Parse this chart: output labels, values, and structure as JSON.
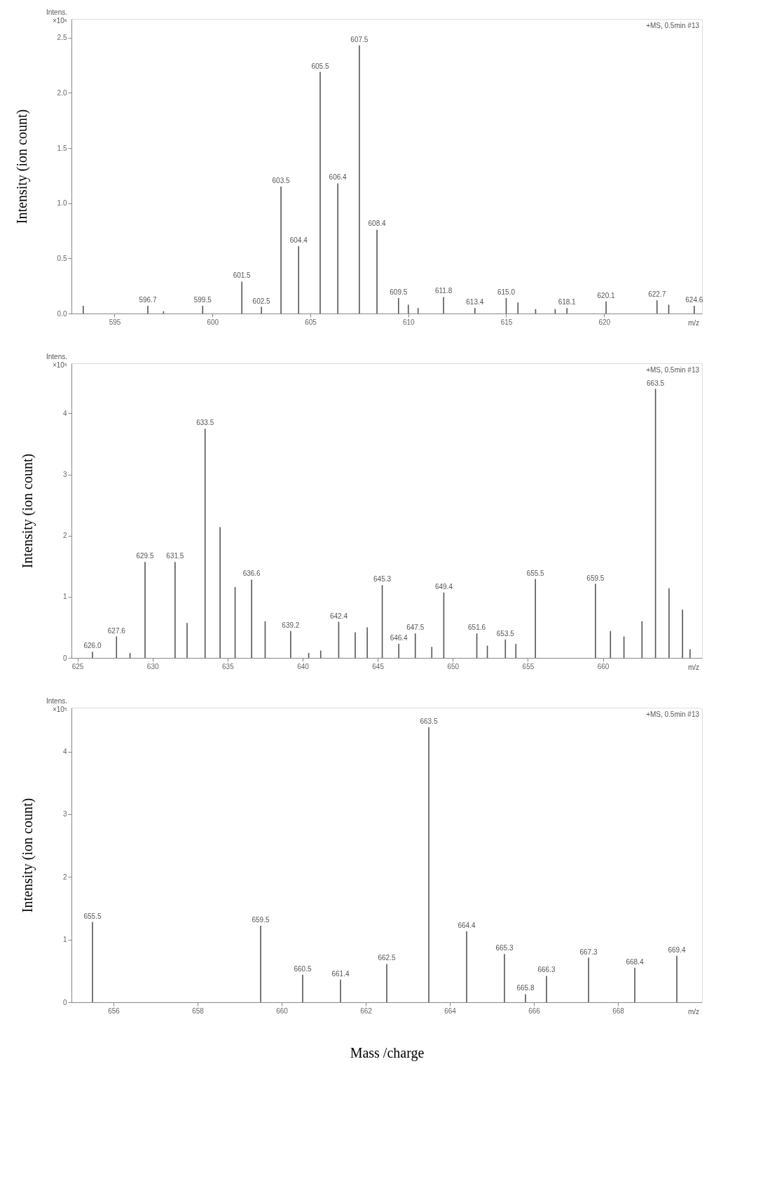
{
  "chart_data": [
    {
      "type": "bar",
      "ylabel": "Intensity (ion count)",
      "color": "#555555",
      "annotations": [
        "Intens.\n×10⁶",
        "+MS, 0.5min #13",
        "m/z",
        {
          "text": "596.7",
          "x": 596.7,
          "y": 0.07
        },
        {
          "text": "599.5",
          "x": 599.5,
          "y": 0.07
        },
        {
          "text": "601.5",
          "x": 601.5,
          "y": 0.29
        },
        {
          "text": "602.5",
          "x": 602.5,
          "y": 0.06
        },
        {
          "text": "603.5",
          "x": 603.5,
          "y": 1.15
        },
        {
          "text": "604.4",
          "x": 604.4,
          "y": 0.61
        },
        {
          "text": "605.5",
          "x": 605.5,
          "y": 2.19
        },
        {
          "text": "606.4",
          "x": 606.4,
          "y": 1.18
        },
        {
          "text": "607.5",
          "x": 607.5,
          "y": 2.43
        },
        {
          "text": "608.4",
          "x": 608.4,
          "y": 0.76
        },
        {
          "text": "609.5",
          "x": 609.5,
          "y": 0.14
        },
        {
          "text": "611.8",
          "x": 611.8,
          "y": 0.15
        },
        {
          "text": "613.4",
          "x": 613.4,
          "y": 0.05
        },
        {
          "text": "615.0",
          "x": 615.0,
          "y": 0.14
        },
        {
          "text": "618.1",
          "x": 618.1,
          "y": 0.05
        },
        {
          "text": "620.1",
          "x": 620.1,
          "y": 0.11
        },
        {
          "text": "622.7",
          "x": 622.7,
          "y": 0.12
        },
        {
          "text": "624.6",
          "x": 624.6,
          "y": 0.07
        }
      ],
      "x": [
        593.4,
        596.7,
        597.5,
        599.5,
        601.5,
        602.5,
        603.5,
        604.4,
        605.5,
        606.4,
        607.5,
        608.4,
        609.5,
        610.0,
        610.5,
        611.8,
        613.4,
        615.0,
        615.6,
        616.5,
        617.5,
        618.1,
        620.1,
        622.7,
        623.3,
        624.6
      ],
      "values": [
        0.07,
        0.07,
        0.02,
        0.07,
        0.29,
        0.06,
        1.15,
        0.61,
        2.19,
        1.18,
        2.43,
        0.76,
        0.14,
        0.08,
        0.05,
        0.15,
        0.05,
        0.14,
        0.1,
        0.04,
        0.04,
        0.05,
        0.11,
        0.12,
        0.08,
        0.07
      ],
      "xlim": [
        592.8,
        625.0
      ],
      "xticks": [
        595,
        600,
        605,
        610,
        615,
        620
      ],
      "ylim": [
        0,
        2.67
      ],
      "yticks": [
        {
          "value": 0,
          "label": "0.0"
        },
        0.5,
        {
          "value": 1,
          "label": "1.0"
        },
        1.5,
        {
          "value": 2,
          "label": "2.0"
        },
        2.5
      ]
    },
    {
      "type": "bar",
      "ylabel": "Intensity (ion count)",
      "color": "#555555",
      "annotations": [
        "Intens.\n×10⁵",
        "+MS, 0.5min #13",
        "m/z",
        {
          "text": "626.0",
          "x": 626.0,
          "y": 0.1
        },
        {
          "text": "627.6",
          "x": 627.6,
          "y": 0.35
        },
        {
          "text": "629.5",
          "x": 629.5,
          "y": 1.57
        },
        {
          "text": "631.5",
          "x": 631.5,
          "y": 1.57
        },
        {
          "text": "633.5",
          "x": 633.5,
          "y": 3.75
        },
        {
          "text": "636.6",
          "x": 636.6,
          "y": 1.28
        },
        {
          "text": "639.2",
          "x": 639.2,
          "y": 0.44
        },
        {
          "text": "642.4",
          "x": 642.4,
          "y": 0.59
        },
        {
          "text": "645.3",
          "x": 645.3,
          "y": 1.19
        },
        {
          "text": "646.4",
          "x": 646.4,
          "y": 0.23
        },
        {
          "text": "647.5",
          "x": 647.5,
          "y": 0.4
        },
        {
          "text": "649.4",
          "x": 649.4,
          "y": 1.07
        },
        {
          "text": "651.6",
          "x": 651.6,
          "y": 0.4
        },
        {
          "text": "653.5",
          "x": 653.5,
          "y": 0.3
        },
        {
          "text": "655.5",
          "x": 655.5,
          "y": 1.29
        },
        {
          "text": "659.5",
          "x": 659.5,
          "y": 1.21
        },
        {
          "text": "663.5",
          "x": 663.5,
          "y": 4.4
        }
      ],
      "x": [
        626.0,
        627.6,
        628.5,
        629.5,
        631.5,
        632.3,
        633.5,
        634.5,
        635.5,
        636.6,
        637.5,
        639.2,
        640.4,
        641.2,
        642.4,
        643.5,
        644.3,
        645.3,
        646.4,
        647.5,
        648.6,
        649.4,
        651.6,
        652.3,
        653.5,
        654.2,
        655.5,
        659.5,
        660.5,
        661.4,
        662.6,
        663.5,
        664.4,
        665.3,
        665.8
      ],
      "values": [
        0.1,
        0.35,
        0.08,
        1.57,
        1.57,
        0.57,
        3.75,
        2.14,
        1.16,
        1.28,
        0.6,
        0.44,
        0.08,
        0.12,
        0.59,
        0.42,
        0.5,
        1.19,
        0.23,
        0.4,
        0.18,
        1.07,
        0.4,
        0.2,
        0.3,
        0.23,
        1.29,
        1.21,
        0.44,
        0.35,
        0.6,
        4.4,
        1.14,
        0.79,
        0.14
      ],
      "xlim": [
        624.6,
        666.6
      ],
      "xticks": [
        625,
        630,
        635,
        640,
        645,
        650,
        655,
        660
      ],
      "ylim": [
        0,
        4.82
      ],
      "yticks": [
        0,
        1,
        2,
        3,
        4
      ]
    },
    {
      "type": "bar",
      "ylabel": "Intensity (ion count)",
      "xlabel": "Mass /charge",
      "color": "#555555",
      "annotations": [
        "Intens.\n×10⁵",
        "+MS, 0.5min #13",
        "m/z",
        {
          "text": "655.5",
          "x": 655.5,
          "y": 1.28
        },
        {
          "text": "659.5",
          "x": 659.5,
          "y": 1.22
        },
        {
          "text": "660.5",
          "x": 660.5,
          "y": 0.44
        },
        {
          "text": "661.4",
          "x": 661.4,
          "y": 0.36
        },
        {
          "text": "662.5",
          "x": 662.5,
          "y": 0.61
        },
        {
          "text": "663.5",
          "x": 663.5,
          "y": 4.39
        },
        {
          "text": "664.4",
          "x": 664.4,
          "y": 1.13
        },
        {
          "text": "665.3",
          "x": 665.3,
          "y": 0.77
        },
        {
          "text": "665.8",
          "x": 665.8,
          "y": 0.13
        },
        {
          "text": "666.3",
          "x": 666.3,
          "y": 0.42
        },
        {
          "text": "667.3",
          "x": 667.3,
          "y": 0.71
        },
        {
          "text": "668.4",
          "x": 668.4,
          "y": 0.55
        },
        {
          "text": "669.4",
          "x": 669.4,
          "y": 0.74
        }
      ],
      "x": [
        655.5,
        659.5,
        660.5,
        661.4,
        662.5,
        663.5,
        664.4,
        665.3,
        665.8,
        666.3,
        667.3,
        668.4,
        669.4
      ],
      "values": [
        1.28,
        1.22,
        0.44,
        0.36,
        0.61,
        4.39,
        1.13,
        0.77,
        0.13,
        0.42,
        0.71,
        0.55,
        0.74
      ],
      "xlim": [
        655,
        670
      ],
      "xticks": [
        656,
        658,
        660,
        662,
        664,
        666,
        668
      ],
      "ylim": [
        0,
        4.7
      ],
      "yticks": [
        0,
        1,
        2,
        3,
        4
      ]
    }
  ]
}
